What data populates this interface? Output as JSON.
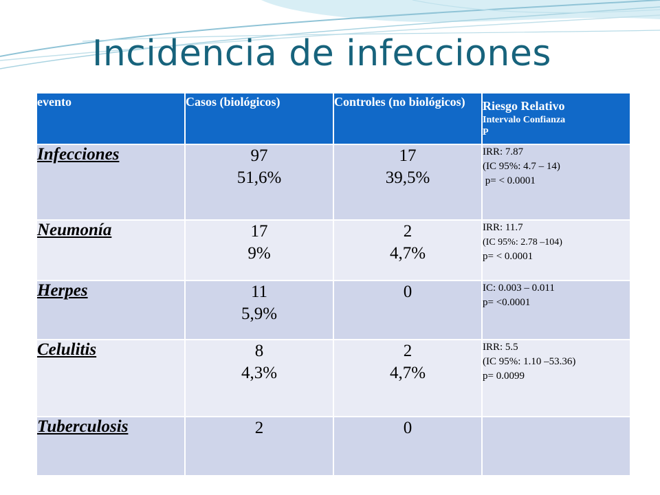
{
  "title": "Incidencia de infecciones",
  "table": {
    "headers": [
      {
        "main": "evento",
        "sub": []
      },
      {
        "main": "Casos (biológicos)",
        "sub": []
      },
      {
        "main": "Controles (no biológicos)",
        "sub": []
      },
      {
        "main": "Riesgo Relativo",
        "sub": [
          "Intervalo Confianza",
          "P"
        ]
      }
    ],
    "rows": [
      {
        "event": "Infecciones",
        "cases": [
          "97",
          "51,6%"
        ],
        "controls": [
          "17",
          "39,5%"
        ],
        "risk": [
          "IRR: 7.87",
          "(IC 95%: 4.7 – 14)",
          " p= < 0.0001"
        ]
      },
      {
        "event": "Neumonía",
        "cases": [
          "17",
          "9%"
        ],
        "controls": [
          "2",
          "4,7%"
        ],
        "risk": [
          "IRR: 11.7",
          "(IC 95%: 2.78 –104)",
          "p= < 0.0001"
        ]
      },
      {
        "event": "Herpes",
        "cases": [
          "11",
          "5,9%"
        ],
        "controls": [
          "0"
        ],
        "risk": [
          "IC: 0.003 – 0.011",
          "p= <0.0001"
        ]
      },
      {
        "event": "Celulitis",
        "cases": [
          "8",
          "4,3%"
        ],
        "controls": [
          "2",
          "4,7%"
        ],
        "risk": [
          "IRR: 5.5",
          "(IC 95%: 1.10 –53.36)",
          "p= 0.0099"
        ]
      },
      {
        "event": "Tuberculosis",
        "cases": [
          "2"
        ],
        "controls": [
          "0"
        ],
        "risk": []
      }
    ]
  },
  "colors": {
    "title": "#17637c",
    "header_bg": "#1169c8",
    "row_dark": "#cfd5ea",
    "row_light": "#e9ebf5",
    "wave_light": "#d8eef5",
    "wave_line": "#8fc3d6"
  }
}
